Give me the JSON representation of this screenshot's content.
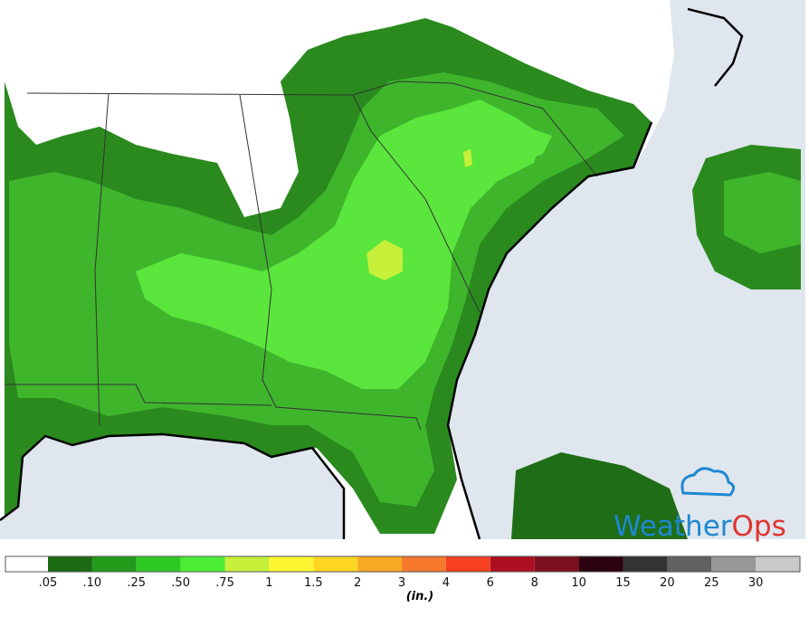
{
  "legend": {
    "labels": [
      ".05",
      ".10",
      ".25",
      ".50",
      ".75",
      "1",
      "1.5",
      "2",
      "3",
      "4",
      "6",
      "8",
      "10",
      "15",
      "20",
      "25",
      "30"
    ],
    "colors": [
      "#ffffff",
      "#1b6a14",
      "#249a1b",
      "#2fc924",
      "#4cee36",
      "#c6f03a",
      "#fff633",
      "#ffd722",
      "#f7a924",
      "#f6792e",
      "#f6401f",
      "#ad0f22",
      "#7a0f1f",
      "#2c0210",
      "#333333",
      "#616161",
      "#989898",
      "#c9c9c9"
    ],
    "unit": "(in.)"
  },
  "logo": {
    "parts": [
      "Weather",
      "Ops"
    ]
  }
}
